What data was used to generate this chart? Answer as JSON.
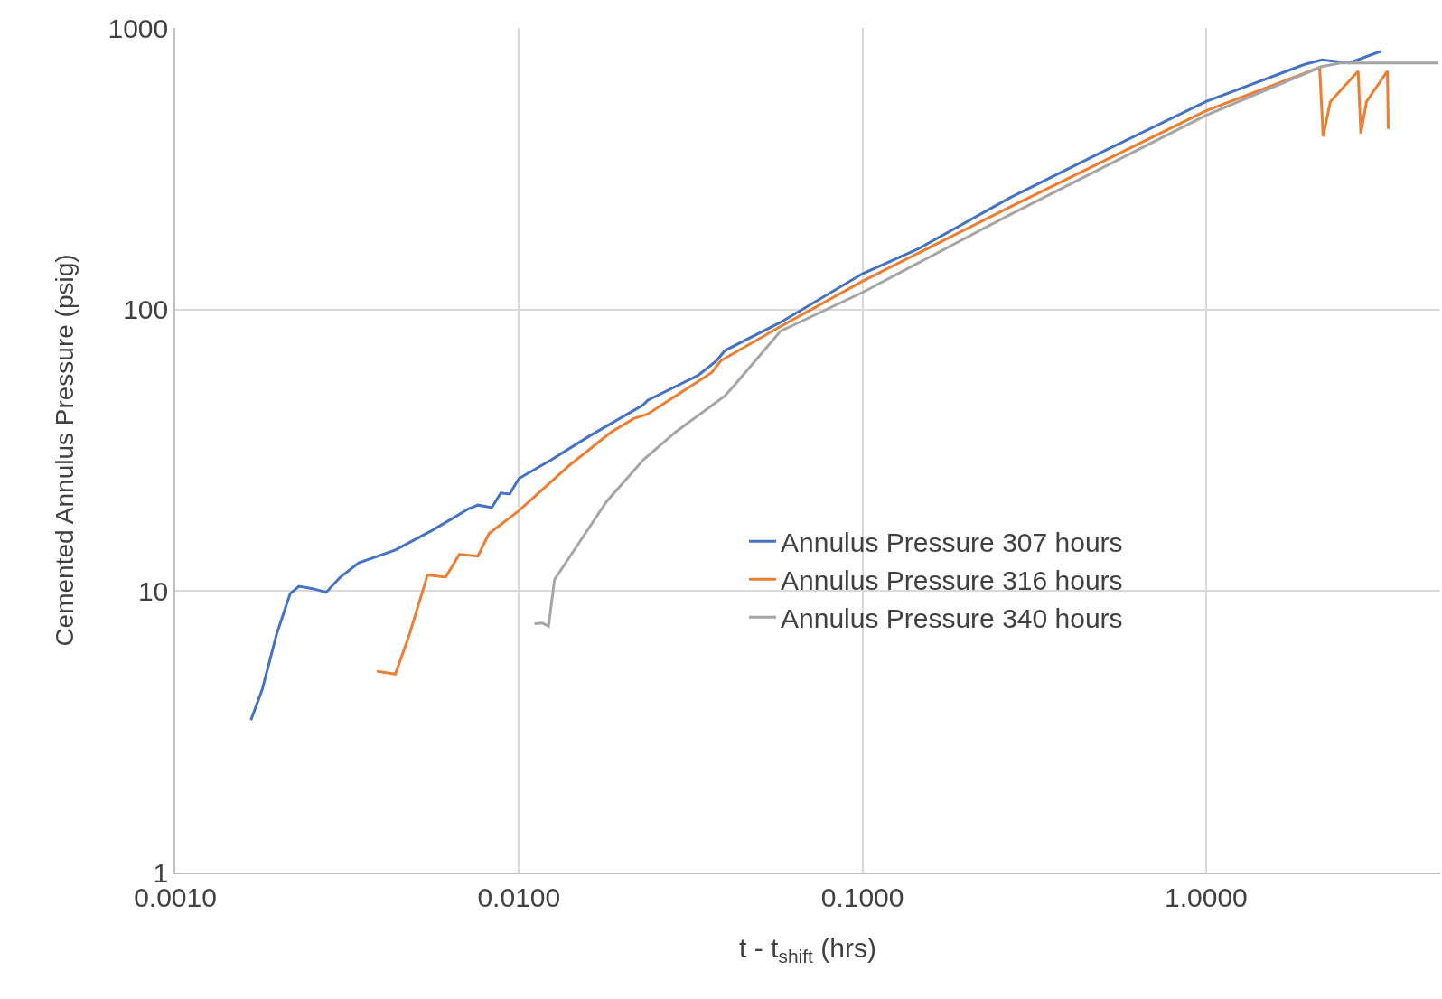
{
  "chart_data": {
    "type": "line",
    "xlabel": "t - t$_{shift}$ (hrs)",
    "ylabel": "Cemented Annulus Pressure (psig)",
    "log": "xy",
    "grid": true,
    "legend": "bottom",
    "line_style": "solid",
    "marker": "none",
    "xlim": [
      0.001,
      4.8
    ],
    "xticks": [
      {
        "value": 0.001,
        "label": "0.0010"
      },
      {
        "value": 0.01,
        "label": "0.0100"
      },
      {
        "value": 0.1,
        "label": "0.1000"
      },
      {
        "value": 1,
        "label": "1.0000"
      }
    ],
    "ylim": [
      1,
      1000
    ],
    "yticks": [
      1,
      10,
      100,
      1000
    ],
    "series": [
      {
        "name": "Annulus Pressure 307 hours",
        "color": "#4472c4",
        "x": [
          0.00166,
          0.00179,
          0.00197,
          0.00216,
          0.00229,
          0.00251,
          0.00275,
          0.00302,
          0.00342,
          0.00437,
          0.00558,
          0.00714,
          0.0076,
          0.00834,
          0.00886,
          0.0094,
          0.01,
          0.0124,
          0.0159,
          0.023,
          0.0237,
          0.0332,
          0.0376,
          0.0398,
          0.0577,
          0.1,
          0.145,
          0.268,
          0.496,
          1.0,
          1.92,
          2.17,
          2.61,
          3.24
        ],
        "values": [
          3.48,
          4.46,
          7.0,
          9.8,
          10.4,
          10.2,
          9.9,
          11.2,
          12.6,
          14.0,
          16.4,
          19.6,
          20.2,
          19.8,
          22.3,
          22.1,
          25.1,
          29.2,
          35.3,
          45.8,
          47.6,
          58.3,
          65.8,
          71.5,
          90,
          134,
          164,
          249,
          362,
          548,
          740,
          770,
          751,
          828
        ]
      },
      {
        "name": "Annulus Pressure 316 hours",
        "color": "#ed7d31",
        "x": [
          0.00386,
          0.00437,
          0.0048,
          0.00542,
          0.00612,
          0.00671,
          0.0076,
          0.00818,
          0.01,
          0.0141,
          0.0185,
          0.0216,
          0.0237,
          0.0364,
          0.0387,
          0.0577,
          0.1,
          0.268,
          1.0,
          2.14,
          2.19,
          2.3,
          2.77,
          2.82,
          2.93,
          3.37,
          3.39
        ],
        "values": [
          5.19,
          5.07,
          7.0,
          11.4,
          11.2,
          13.5,
          13.3,
          16.0,
          19.3,
          28.1,
          36.6,
          41,
          42.5,
          59.7,
          65.8,
          87,
          126,
          231,
          508,
          724,
          412,
          548,
          703,
          422,
          548,
          703,
          438
        ]
      },
      {
        "name": "Annulus Pressure 340 hours",
        "color": "#a5a5a5",
        "x": [
          0.0111,
          0.0117,
          0.0122,
          0.0127,
          0.0141,
          0.018,
          0.023,
          0.0285,
          0.0398,
          0.0425,
          0.0577,
          0.1,
          0.268,
          1.0,
          2.17,
          2.46,
          4.75
        ],
        "values": [
          7.66,
          7.7,
          7.5,
          11.0,
          13.3,
          20.8,
          29.2,
          36.6,
          49.4,
          54,
          83.7,
          115,
          217,
          490,
          729,
          751,
          751
        ]
      }
    ]
  }
}
